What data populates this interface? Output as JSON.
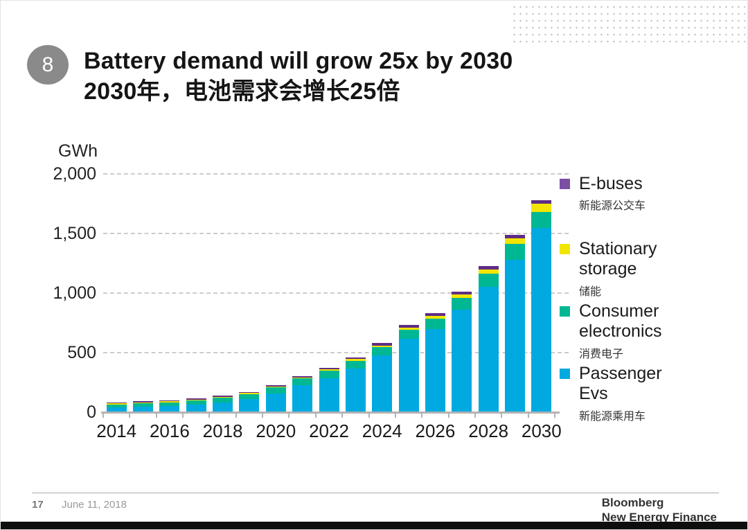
{
  "slide": {
    "number_badge": "8",
    "title_en": "Battery demand will grow 25x by 2030",
    "title_zh": "2030年，电池需求会增长25倍"
  },
  "footer": {
    "page_number": "17",
    "date": "June 11, 2018",
    "brand_line1": "Bloomberg",
    "brand_line2": "New Energy Finance"
  },
  "chart_data": {
    "type": "bar",
    "stacked": true,
    "title": "Battery demand will grow 25x by 2030",
    "unit_label": "GWh",
    "ylabel": "GWh",
    "xlabel": "",
    "ylim": [
      0,
      2000
    ],
    "grid": "horizontal-dashed",
    "legend_position": "right",
    "x": [
      2014,
      2015,
      2016,
      2017,
      2018,
      2019,
      2020,
      2021,
      2022,
      2023,
      2024,
      2025,
      2026,
      2027,
      2028,
      2029,
      2030
    ],
    "x_tick_labels": [
      "2014",
      "2016",
      "2018",
      "2020",
      "2022",
      "2024",
      "2026",
      "2028",
      "2030"
    ],
    "y_ticks": [
      {
        "label": "2,000",
        "value": 2000
      },
      {
        "label": "1,500",
        "value": 1500
      },
      {
        "label": "1,000",
        "value": 1000
      },
      {
        "label": "500",
        "value": 500
      },
      {
        "label": "0",
        "value": 0
      }
    ],
    "series": [
      {
        "name": "Passenger Evs",
        "name_zh": "新能源乘用车",
        "color": "#00a9e0",
        "values": [
          40,
          45,
          52,
          62,
          80,
          108,
          155,
          225,
          285,
          365,
          475,
          615,
          700,
          860,
          1050,
          1280,
          1545
        ]
      },
      {
        "name": "Consumer electronics",
        "name_zh": "消费电子",
        "color": "#00b794",
        "values": [
          25,
          28,
          32,
          36,
          40,
          45,
          52,
          58,
          62,
          66,
          70,
          76,
          85,
          100,
          115,
          130,
          135
        ]
      },
      {
        "name": "Stationary storage",
        "name_zh": "储能",
        "color": "#f2e500",
        "values": [
          2,
          3,
          4,
          4,
          5,
          5,
          7,
          10,
          12,
          14,
          16,
          19,
          22,
          26,
          34,
          52,
          68
        ]
      },
      {
        "name": "E-buses",
        "name_zh": "新能源公交车",
        "color": "#5f2d84",
        "values": [
          3,
          4,
          5,
          5,
          5,
          6,
          8,
          10,
          13,
          16,
          19,
          21,
          23,
          24,
          26,
          28,
          32
        ]
      }
    ],
    "totals": [
      70,
      80,
      93,
      107,
      130,
      164,
      222,
      303,
      372,
      461,
      580,
      731,
      830,
      1010,
      1225,
      1490,
      1780
    ]
  },
  "legend": {
    "items": [
      {
        "label_lines": [
          "E-buses"
        ],
        "label_zh": "新能源公交车",
        "color": "#7b4fa6"
      },
      {
        "label_lines": [
          "Stationary",
          "storage"
        ],
        "label_zh": "储能",
        "color": "#f2e500"
      },
      {
        "label_lines": [
          "Consumer",
          "electronics"
        ],
        "label_zh": "消费电子",
        "color": "#00b794"
      },
      {
        "label_lines": [
          "Passenger",
          "Evs"
        ],
        "label_zh": "新能源乘用车",
        "color": "#00a9e0"
      }
    ]
  }
}
